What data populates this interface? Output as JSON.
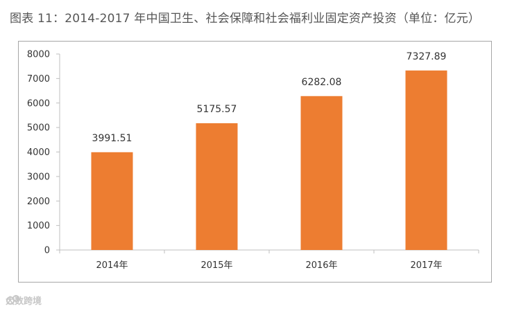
{
  "title": "图表 11：2014-2017 年中国卫生、社会保障和社会福利业固定资产投资（单位：亿元）",
  "watermark": {
    "text": "大数跨境",
    "icon": "watermark-logo-icon"
  },
  "colors": {
    "bar": "#ED7D31",
    "axis": "#bfbfbf",
    "frame": "#a6a6a6"
  },
  "chart_data": {
    "type": "bar",
    "title": "",
    "xlabel": "",
    "ylabel": "",
    "categories": [
      "2014年",
      "2015年",
      "2016年",
      "2017年"
    ],
    "values": [
      3991.51,
      5175.57,
      6282.08,
      7327.89
    ],
    "value_labels": [
      "3991.51",
      "5175.57",
      "6282.08",
      "7327.89"
    ],
    "ylim": [
      0,
      8000
    ],
    "yticks": [
      0,
      1000,
      2000,
      3000,
      4000,
      5000,
      6000,
      7000,
      8000
    ],
    "grid": false,
    "legend": "none"
  }
}
